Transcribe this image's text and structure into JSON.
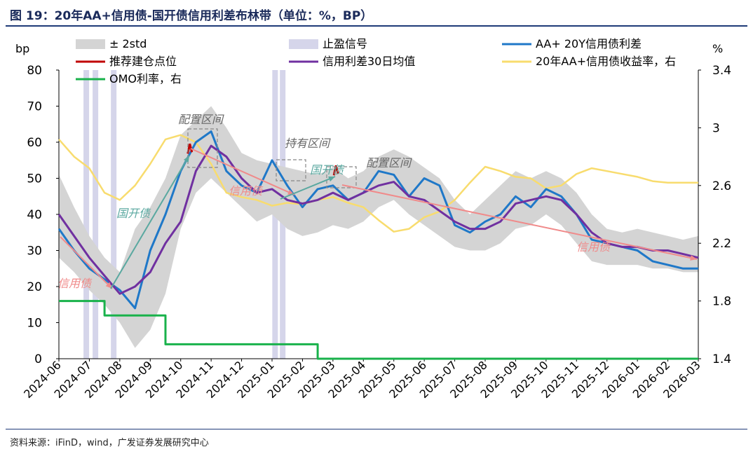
{
  "header": {
    "title": "图 19：20年AA+信用债-国开债信用利差布林带（单位：%，BP）"
  },
  "footer": {
    "source": "资料来源：iFinD，wind，广发证券发展研究中心"
  },
  "colors": {
    "band": "#d4d4d4",
    "signal": "#d5d5ea",
    "spread": "#1f78c8",
    "pick": "#c00000",
    "ma30": "#7030a0",
    "yield": "#f8dc6e",
    "omo": "#19b24b",
    "arrow_pink": "#f08a8a",
    "arrow_teal": "#5aa8a0"
  },
  "chart_data": {
    "type": "line",
    "left_axis": {
      "label": "bp",
      "ticks": [
        "80",
        "70",
        "60",
        "50",
        "40",
        "30",
        "20",
        "10",
        "0"
      ],
      "ylim": [
        0,
        80
      ]
    },
    "right_axis": {
      "label": "%",
      "ticks": [
        "3.4",
        "3",
        "2.6",
        "2.2",
        "1.8",
        "1.4"
      ],
      "ylim": [
        1.4,
        3.4
      ]
    },
    "x_ticks": [
      "2024-06",
      "2024-07",
      "2024-08",
      "2024-09",
      "2024-10",
      "2024-11",
      "2024-12",
      "2025-01",
      "2025-02",
      "2025-03",
      "2025-04",
      "2025-05",
      "2025-06",
      "2025-07",
      "2025-08",
      "2025-09",
      "2025-10",
      "2025-11",
      "2025-12",
      "2026-01",
      "2026-02",
      "2026-03"
    ],
    "legend": [
      {
        "label": "± 2std",
        "key": "band"
      },
      {
        "label": "止盈信号",
        "key": "signal"
      },
      {
        "label": "AA+ 20Y信用债利差",
        "key": "spread"
      },
      {
        "label": "推荐建仓点位",
        "key": "pick"
      },
      {
        "label": "信用利差30日均值",
        "key": "ma30"
      },
      {
        "label": "20年AA+信用债收益率，右",
        "key": "yield"
      },
      {
        "label": "OMO利率，右",
        "key": "omo"
      }
    ],
    "annotations": [
      "配置区间",
      "持有区间",
      "配置区间",
      "信用债",
      "国开债",
      "信用债",
      "国开债",
      "信用债"
    ],
    "x_months": [
      0,
      0.5,
      1,
      1.5,
      2,
      2.5,
      3,
      3.5,
      4,
      4.5,
      5,
      5.5,
      6,
      6.5,
      7,
      7.5,
      8,
      8.5,
      9,
      9.5,
      10,
      10.5,
      11,
      11.5,
      12,
      12.5,
      13,
      13.5,
      14,
      14.5,
      15,
      15.5,
      16,
      16.5,
      17,
      17.5,
      18,
      18.5,
      19,
      19.5,
      20,
      20.5,
      21
    ],
    "series": [
      {
        "name": "AA+ 20Y信用债利差",
        "axis": "left",
        "values": [
          36,
          30,
          25,
          22,
          19,
          14,
          30,
          40,
          52,
          60,
          63,
          52,
          48,
          46,
          55,
          48,
          42,
          47,
          48,
          44,
          46,
          52,
          51,
          45,
          50,
          48,
          37,
          35,
          38,
          40,
          45,
          42,
          47,
          45,
          40,
          33,
          32,
          31,
          30,
          27,
          26,
          25,
          25
        ]
      },
      {
        "name": "信用利差30日均值",
        "axis": "left",
        "values": [
          40,
          34,
          28,
          23,
          18,
          20,
          24,
          32,
          38,
          52,
          59,
          56,
          50,
          46,
          47,
          44,
          43,
          44,
          46,
          44,
          46,
          48,
          49,
          45,
          44,
          41,
          38,
          36,
          36,
          38,
          43,
          44,
          45,
          44,
          40,
          35,
          32,
          31,
          31,
          30,
          30,
          29,
          28
        ]
      },
      {
        "name": "2std_upper",
        "axis": "left",
        "values": [
          51,
          42,
          34,
          28,
          24,
          36,
          42,
          50,
          62,
          66,
          70,
          64,
          57,
          55,
          54,
          53,
          52,
          51,
          53,
          50,
          52,
          56,
          58,
          56,
          53,
          50,
          44,
          40,
          44,
          48,
          52,
          50,
          52,
          50,
          46,
          40,
          36,
          35,
          36,
          35,
          34,
          33,
          34
        ]
      },
      {
        "name": "2std_lower",
        "axis": "left",
        "values": [
          28,
          24,
          19,
          15,
          10,
          3,
          8,
          18,
          36,
          46,
          50,
          46,
          42,
          38,
          40,
          36,
          34,
          35,
          37,
          36,
          38,
          42,
          44,
          40,
          37,
          34,
          31,
          30,
          30,
          32,
          36,
          37,
          40,
          37,
          32,
          27,
          26,
          26,
          26,
          25,
          25,
          24,
          24
        ]
      },
      {
        "name": "20年AA+信用债收益率，右",
        "axis": "right",
        "values": [
          2.92,
          2.8,
          2.72,
          2.55,
          2.5,
          2.6,
          2.75,
          2.92,
          2.95,
          2.9,
          2.75,
          2.55,
          2.52,
          2.5,
          2.46,
          2.48,
          2.47,
          2.5,
          2.52,
          2.48,
          2.45,
          2.36,
          2.28,
          2.3,
          2.38,
          2.42,
          2.5,
          2.62,
          2.73,
          2.7,
          2.66,
          2.65,
          2.58,
          2.6,
          2.68,
          2.72,
          2.7,
          2.68,
          2.66,
          2.63,
          2.62,
          2.62,
          2.62
        ]
      },
      {
        "name": "OMO利率，右",
        "axis": "right",
        "step": true,
        "values": [
          1.8,
          1.8,
          1.8,
          1.7,
          1.7,
          1.7,
          1.7,
          1.5,
          1.5,
          1.5,
          1.5,
          1.5,
          1.5,
          1.5,
          1.5,
          1.5,
          1.5,
          1.4,
          1.4,
          1.4,
          1.4,
          1.4,
          1.4,
          1.4,
          1.4,
          1.4,
          1.4,
          1.4,
          1.4,
          1.4,
          1.4,
          1.4,
          1.4,
          1.4,
          1.4,
          1.4,
          1.4,
          1.4,
          1.4,
          1.4,
          1.4,
          1.4,
          1.4
        ]
      }
    ],
    "signal_months": [
      0.9,
      1.2,
      1.8,
      7.1,
      7.35
    ],
    "pick_points": [
      {
        "month": 4.3,
        "value": 58
      },
      {
        "month": 9.1,
        "value": 52
      }
    ]
  }
}
